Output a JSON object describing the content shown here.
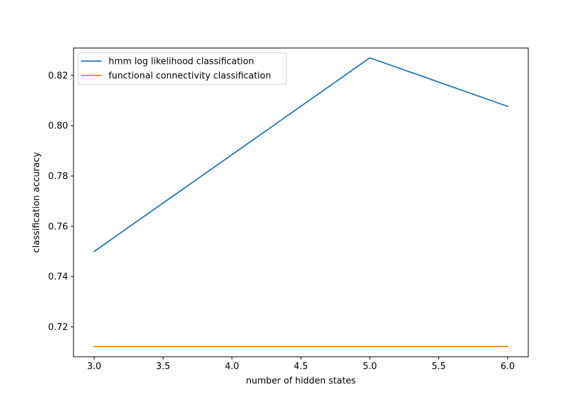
{
  "chart_data": {
    "type": "line",
    "x": [
      3.0,
      5.0,
      6.0
    ],
    "series": [
      {
        "name": "hmm log likelihood classification",
        "color": "#1f77b4",
        "x": [
          3.0,
          5.0,
          6.0
        ],
        "values": [
          0.75,
          0.827,
          0.8077
        ]
      },
      {
        "name": "functional connectivity classification",
        "color": "#ff7f0e",
        "x": [
          3.0,
          5.0,
          6.0
        ],
        "values": [
          0.7122,
          0.7122,
          0.7122
        ]
      }
    ],
    "xlabel": "number of hidden states",
    "ylabel": "classification accuracy",
    "xlim": [
      2.85,
      6.15
    ],
    "ylim": [
      0.7081,
      0.8309
    ],
    "xticks": [
      "3.0",
      "3.5",
      "4.0",
      "4.5",
      "5.0",
      "5.5",
      "6.0"
    ],
    "yticks": [
      "0.72",
      "0.74",
      "0.76",
      "0.78",
      "0.80",
      "0.82"
    ],
    "grid": false,
    "legend_position": "upper-left"
  }
}
